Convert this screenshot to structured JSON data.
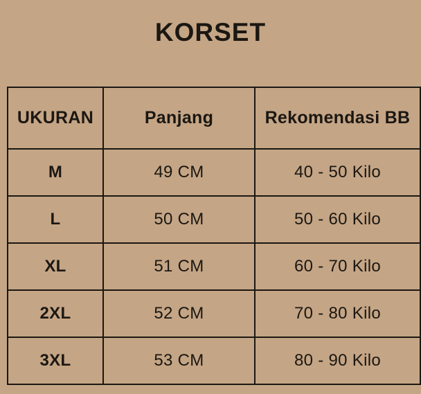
{
  "page": {
    "title": "KORSET",
    "background_color": "#c4a585",
    "border_color": "#1b1712",
    "text_color": "#1b1712"
  },
  "chart_data": {
    "type": "table",
    "title": "KORSET",
    "columns": [
      "UKURAN",
      "Panjang",
      "Rekomendasi BB"
    ],
    "rows": [
      [
        "M",
        "49 CM",
        "40 - 50 Kilo"
      ],
      [
        "L",
        "50 CM",
        "50 - 60 Kilo"
      ],
      [
        "XL",
        "51 CM",
        "60 - 70 Kilo"
      ],
      [
        "2XL",
        "52 CM",
        "70 - 80 Kilo"
      ],
      [
        "3XL",
        "53 CM",
        "80 - 90 Kilo"
      ]
    ],
    "layout": {
      "title_position": "top-center",
      "header_bold": true,
      "first_column_bold": true,
      "grid": "all-borders"
    }
  }
}
